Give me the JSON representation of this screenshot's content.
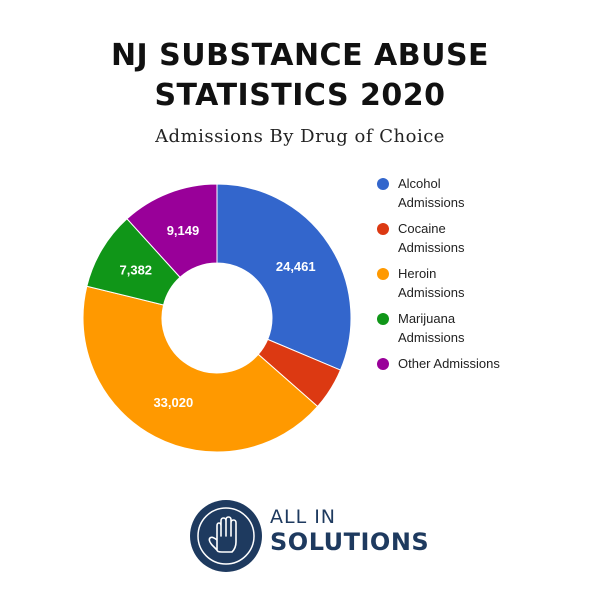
{
  "header": {
    "title_line1": "NJ SUBSTANCE ABUSE",
    "title_line2": "STATISTICS 2020"
  },
  "chart_data": {
    "type": "pie",
    "donut": true,
    "subtitle": "Admissions By Drug of Choice",
    "legend_position": "right",
    "series": [
      {
        "name": "Alcohol Admissions",
        "legend_lines": [
          "Alcohol",
          "Admissions"
        ],
        "value": 24461,
        "label": "24,461",
        "color": "#3366cc"
      },
      {
        "name": "Cocaine Admissions",
        "legend_lines": [
          "Cocaine",
          "Admissions"
        ],
        "value": 4000,
        "label": "",
        "color": "#dc3912"
      },
      {
        "name": "Heroin Admissions",
        "legend_lines": [
          "Heroin",
          "Admissions"
        ],
        "value": 33020,
        "label": "33,020",
        "color": "#ff9900"
      },
      {
        "name": "Marijuana Admissions",
        "legend_lines": [
          "Marijuana",
          "Admissions"
        ],
        "value": 7382,
        "label": "7,382",
        "color": "#109618"
      },
      {
        "name": "Other Admissions",
        "legend_lines": [
          "Other Admissions"
        ],
        "value": 9149,
        "label": "9,149",
        "color": "#990099"
      }
    ]
  },
  "logo": {
    "line1": "ALL IN",
    "line2": "SOLUTIONS",
    "icon": "raised-hand-icon",
    "color": "#1e3a5f"
  }
}
